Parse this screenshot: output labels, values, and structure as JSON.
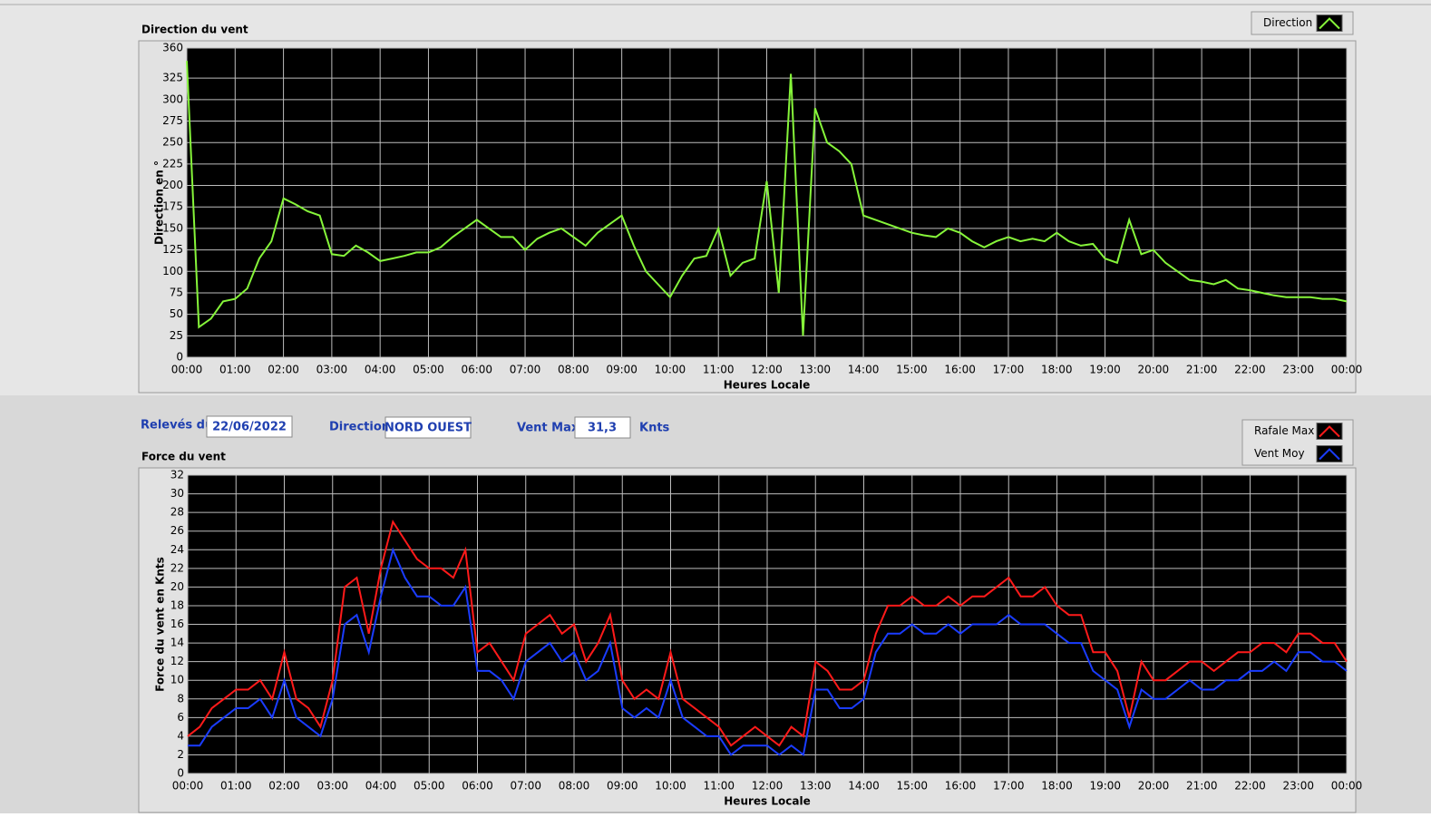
{
  "chart_data": [
    {
      "type": "line",
      "title": "Direction du vent",
      "y_label": "Direction en °",
      "x_label": "Heures Locale",
      "x": [
        0,
        0.25,
        0.5,
        0.75,
        1,
        1.25,
        1.5,
        1.75,
        2,
        2.25,
        2.5,
        2.75,
        3,
        3.25,
        3.5,
        3.75,
        4,
        4.25,
        4.5,
        4.75,
        5,
        5.25,
        5.5,
        5.75,
        6,
        6.25,
        6.5,
        6.75,
        7,
        7.25,
        7.5,
        7.75,
        8,
        8.25,
        8.5,
        8.75,
        9,
        9.25,
        9.5,
        9.75,
        10,
        10.25,
        10.5,
        10.75,
        11,
        11.25,
        11.5,
        11.75,
        12,
        12.25,
        12.5,
        12.75,
        13,
        13.25,
        13.5,
        13.75,
        14,
        14.25,
        14.5,
        14.75,
        15,
        15.25,
        15.5,
        15.75,
        16,
        16.25,
        16.5,
        16.75,
        17,
        17.25,
        17.5,
        17.75,
        18,
        18.25,
        18.5,
        18.75,
        19,
        19.25,
        19.5,
        19.75,
        20,
        20.25,
        20.5,
        20.75,
        21,
        21.25,
        21.5,
        21.75,
        22,
        22.25,
        22.5,
        22.75,
        23,
        23.25,
        23.5,
        23.75,
        24
      ],
      "series": [
        {
          "name": "Direction",
          "color": "#86f53a",
          "values": [
            345,
            35,
            45,
            65,
            68,
            80,
            115,
            135,
            185,
            178,
            170,
            165,
            120,
            118,
            130,
            122,
            112,
            115,
            118,
            122,
            122,
            128,
            140,
            150,
            160,
            150,
            140,
            140,
            125,
            138,
            145,
            150,
            140,
            130,
            145,
            155,
            165,
            130,
            100,
            85,
            70,
            95,
            115,
            118,
            150,
            95,
            110,
            115,
            205,
            75,
            330,
            25,
            290,
            250,
            240,
            225,
            165,
            160,
            155,
            150,
            145,
            142,
            140,
            150,
            145,
            135,
            128,
            135,
            140,
            135,
            138,
            135,
            145,
            135,
            130,
            132,
            115,
            110,
            160,
            120,
            125,
            110,
            100,
            90,
            88,
            85,
            90,
            80,
            78,
            75,
            72,
            70,
            70,
            70,
            68,
            68,
            65
          ]
        }
      ],
      "xlim": [
        0,
        24
      ],
      "xticks": [
        {
          "value": 0,
          "label": "00:00"
        },
        {
          "value": 1,
          "label": "01:00"
        },
        {
          "value": 2,
          "label": "02:00"
        },
        {
          "value": 3,
          "label": "03:00"
        },
        {
          "value": 4,
          "label": "04:00"
        },
        {
          "value": 5,
          "label": "05:00"
        },
        {
          "value": 6,
          "label": "06:00"
        },
        {
          "value": 7,
          "label": "07:00"
        },
        {
          "value": 8,
          "label": "08:00"
        },
        {
          "value": 9,
          "label": "09:00"
        },
        {
          "value": 10,
          "label": "10:00"
        },
        {
          "value": 11,
          "label": "11:00"
        },
        {
          "value": 12,
          "label": "12:00"
        },
        {
          "value": 13,
          "label": "13:00"
        },
        {
          "value": 14,
          "label": "14:00"
        },
        {
          "value": 15,
          "label": "15:00"
        },
        {
          "value": 16,
          "label": "16:00"
        },
        {
          "value": 17,
          "label": "17:00"
        },
        {
          "value": 18,
          "label": "18:00"
        },
        {
          "value": 19,
          "label": "19:00"
        },
        {
          "value": 20,
          "label": "20:00"
        },
        {
          "value": 21,
          "label": "21:00"
        },
        {
          "value": 22,
          "label": "22:00"
        },
        {
          "value": 23,
          "label": "23:00"
        },
        {
          "value": 24,
          "label": "00:00"
        }
      ],
      "ylim": [
        0,
        360
      ],
      "yticks": [
        0,
        25,
        50,
        75,
        100,
        125,
        150,
        175,
        200,
        225,
        250,
        275,
        300,
        325,
        360
      ],
      "grid": true,
      "legend": "top-right"
    },
    {
      "type": "line",
      "title": "Force du vent",
      "y_label": "Force du vent en Knts",
      "x_label": "Heures Locale",
      "x": [
        0,
        0.25,
        0.5,
        0.75,
        1,
        1.25,
        1.5,
        1.75,
        2,
        2.25,
        2.5,
        2.75,
        3,
        3.25,
        3.5,
        3.75,
        4,
        4.25,
        4.5,
        4.75,
        5,
        5.25,
        5.5,
        5.75,
        6,
        6.25,
        6.5,
        6.75,
        7,
        7.25,
        7.5,
        7.75,
        8,
        8.25,
        8.5,
        8.75,
        9,
        9.25,
        9.5,
        9.75,
        10,
        10.25,
        10.5,
        10.75,
        11,
        11.25,
        11.5,
        11.75,
        12,
        12.25,
        12.5,
        12.75,
        13,
        13.25,
        13.5,
        13.75,
        14,
        14.25,
        14.5,
        14.75,
        15,
        15.25,
        15.5,
        15.75,
        16,
        16.25,
        16.5,
        16.75,
        17,
        17.25,
        17.5,
        17.75,
        18,
        18.25,
        18.5,
        18.75,
        19,
        19.25,
        19.5,
        19.75,
        20,
        20.25,
        20.5,
        20.75,
        21,
        21.25,
        21.5,
        21.75,
        22,
        22.25,
        22.5,
        22.75,
        23,
        23.25,
        23.5,
        23.75,
        24
      ],
      "series": [
        {
          "name": "Rafale Max",
          "color": "#ff1a1a",
          "values": [
            4,
            5,
            7,
            8,
            9,
            9,
            10,
            8,
            13,
            8,
            7,
            5,
            10,
            20,
            21,
            15,
            22,
            27,
            25,
            23,
            22,
            22,
            21,
            24,
            13,
            14,
            12,
            10,
            15,
            16,
            17,
            15,
            16,
            12,
            14,
            17,
            10,
            8,
            9,
            8,
            13,
            8,
            7,
            6,
            5,
            3,
            4,
            5,
            4,
            3,
            5,
            4,
            12,
            11,
            9,
            9,
            10,
            15,
            18,
            18,
            19,
            18,
            18,
            19,
            18,
            19,
            19,
            20,
            21,
            19,
            19,
            20,
            18,
            17,
            17,
            13,
            13,
            11,
            6,
            12,
            10,
            10,
            11,
            12,
            12,
            11,
            12,
            13,
            13,
            14,
            14,
            13,
            15,
            15,
            14,
            14,
            12
          ]
        },
        {
          "name": "Vent Moy",
          "color": "#1a3cff",
          "values": [
            3,
            3,
            5,
            6,
            7,
            7,
            8,
            6,
            10,
            6,
            5,
            4,
            8,
            16,
            17,
            13,
            19,
            24,
            21,
            19,
            19,
            18,
            18,
            20,
            11,
            11,
            10,
            8,
            12,
            13,
            14,
            12,
            13,
            10,
            11,
            14,
            7,
            6,
            7,
            6,
            10,
            6,
            5,
            4,
            4,
            2,
            3,
            3,
            3,
            2,
            3,
            2,
            9,
            9,
            7,
            7,
            8,
            13,
            15,
            15,
            16,
            15,
            15,
            16,
            15,
            16,
            16,
            16,
            17,
            16,
            16,
            16,
            15,
            14,
            14,
            11,
            10,
            9,
            5,
            9,
            8,
            8,
            9,
            10,
            9,
            9,
            10,
            10,
            11,
            11,
            12,
            11,
            13,
            13,
            12,
            12,
            11
          ]
        }
      ],
      "xlim": [
        0,
        24
      ],
      "xticks": [
        {
          "value": 0,
          "label": "00:00"
        },
        {
          "value": 1,
          "label": "01:00"
        },
        {
          "value": 2,
          "label": "02:00"
        },
        {
          "value": 3,
          "label": "03:00"
        },
        {
          "value": 4,
          "label": "04:00"
        },
        {
          "value": 5,
          "label": "05:00"
        },
        {
          "value": 6,
          "label": "06:00"
        },
        {
          "value": 7,
          "label": "07:00"
        },
        {
          "value": 8,
          "label": "08:00"
        },
        {
          "value": 9,
          "label": "09:00"
        },
        {
          "value": 10,
          "label": "10:00"
        },
        {
          "value": 11,
          "label": "11:00"
        },
        {
          "value": 12,
          "label": "12:00"
        },
        {
          "value": 13,
          "label": "13:00"
        },
        {
          "value": 14,
          "label": "14:00"
        },
        {
          "value": 15,
          "label": "15:00"
        },
        {
          "value": 16,
          "label": "16:00"
        },
        {
          "value": 17,
          "label": "17:00"
        },
        {
          "value": 18,
          "label": "18:00"
        },
        {
          "value": 19,
          "label": "19:00"
        },
        {
          "value": 20,
          "label": "20:00"
        },
        {
          "value": 21,
          "label": "21:00"
        },
        {
          "value": 22,
          "label": "22:00"
        },
        {
          "value": 23,
          "label": "23:00"
        },
        {
          "value": 24,
          "label": "00:00"
        }
      ],
      "ylim": [
        0,
        32
      ],
      "yticks": [
        0,
        2,
        4,
        6,
        8,
        10,
        12,
        14,
        16,
        18,
        20,
        22,
        24,
        26,
        28,
        30,
        32
      ],
      "grid": true,
      "legend": "top-right"
    }
  ],
  "controls": {
    "date_label": "Relevés du",
    "date": "22/06/2022",
    "direction_label": "Direction",
    "direction": "NORD OUEST",
    "vent_max_label": "Vent Max",
    "vent_max": "31,3",
    "unit": "Knts"
  }
}
